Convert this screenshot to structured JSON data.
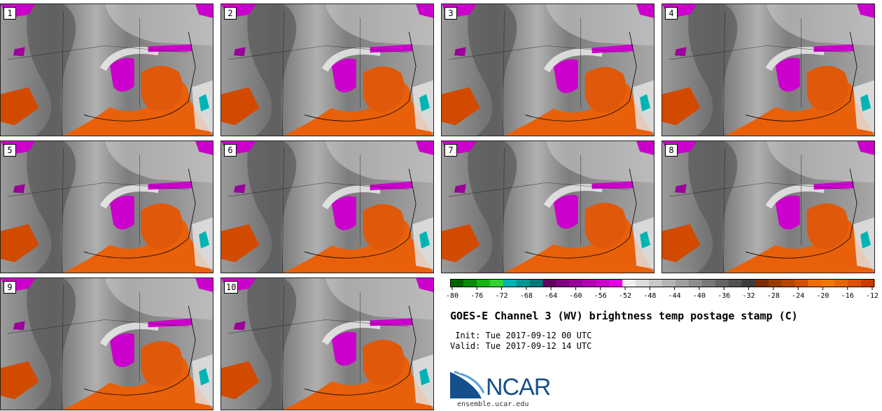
{
  "panels": [
    "1",
    "2",
    "3",
    "4",
    "5",
    "6",
    "7",
    "8",
    "9",
    "10"
  ],
  "colorbar": {
    "ticks": [
      "-80",
      "-76",
      "-72",
      "-68",
      "-64",
      "-60",
      "-56",
      "-52",
      "-48",
      "-44",
      "-40",
      "-36",
      "-32",
      "-28",
      "-24",
      "-20",
      "-16",
      "-12"
    ],
    "colors": [
      "#006400",
      "#0a8a0a",
      "#14b414",
      "#32d232",
      "#00b4b4",
      "#009696",
      "#007878",
      "#640064",
      "#800080",
      "#9b009b",
      "#b400b4",
      "#cc00cc",
      "#e600e6",
      "#f0f0f0",
      "#dcdcdc",
      "#c8c8c8",
      "#b4b4b4",
      "#a0a0a0",
      "#8c8c8c",
      "#787878",
      "#646464",
      "#505050",
      "#3c3c3c",
      "#7a2e00",
      "#963c00",
      "#b44600",
      "#d25000",
      "#ee6c00",
      "#f07800",
      "#e66400",
      "#dc5000",
      "#c83c00"
    ]
  },
  "title": "GOES-E Channel 3 (WV) brightness temp postage stamp (C)",
  "init": " Init: Tue 2017-09-12 00 UTC",
  "valid": "Valid: Tue 2017-09-12 14 UTC",
  "logo": {
    "text": "NCAR",
    "url": "ensemble.ucar.edu"
  },
  "colors": {
    "moist_purple": "#cc00cc",
    "dry_orange": "#e8600a",
    "gray_base": "#8a8a8a",
    "logo_blue": "#15508c"
  }
}
